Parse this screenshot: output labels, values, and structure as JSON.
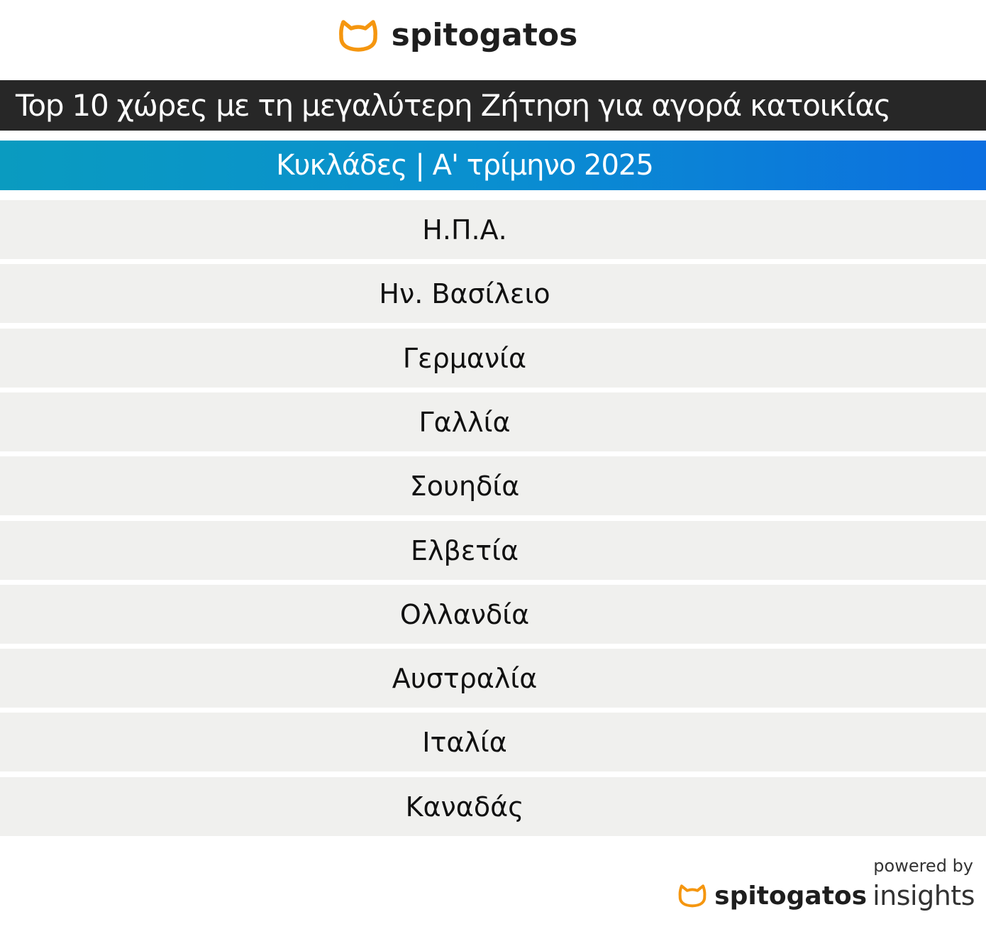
{
  "brand": {
    "name": "spitogatos",
    "accent_color": "#f5960f",
    "icon": "cat-head-icon"
  },
  "chart_data": {
    "type": "table",
    "title": "Top 10 χώρες με τη μεγαλύτερη Ζήτηση για αγορά κατοικίας",
    "subtitle": "Κυκλάδες | Α' τρίμηνο 2025",
    "rows": [
      "Η.Π.Α.",
      "Ην. Βασίλειο",
      "Γερμανία",
      "Γαλλία",
      "Σουηδία",
      "Ελβετία",
      "Ολλανδία",
      "Αυστραλία",
      "Ιταλία",
      "Καναδάς"
    ]
  },
  "footer": {
    "powered_by": "powered by",
    "brand": "spitogatos",
    "product": "insights"
  },
  "colors": {
    "title_bar": "#272727",
    "subtitle_gradient_start": "#0a9bc0",
    "subtitle_gradient_end": "#0c6fe0",
    "row_background": "#f0f0ee"
  }
}
